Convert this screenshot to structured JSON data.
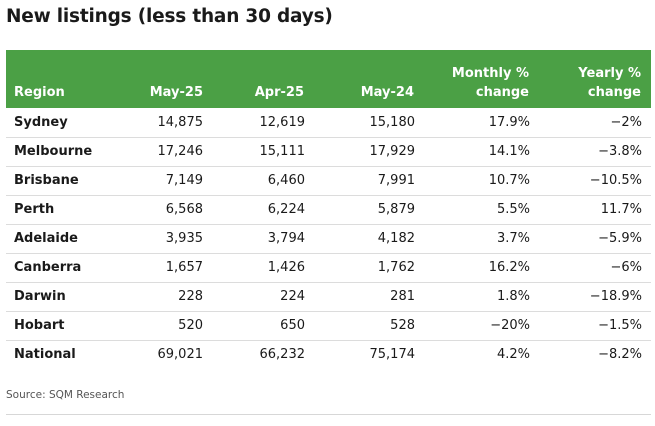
{
  "title": "New listings (less than 30 days)",
  "table": {
    "headers": {
      "region": "Region",
      "may25": "May-25",
      "apr25": "Apr-25",
      "may24": "May-24",
      "monthly_line1": "Monthly %",
      "monthly_line2": "change",
      "yearly_line1": "Yearly %",
      "yearly_line2": "change"
    },
    "header_color": "#4ba045",
    "rows": [
      {
        "region": "Sydney",
        "may25": "14,875",
        "apr25": "12,619",
        "may24": "15,180",
        "monthly": "17.9%",
        "yearly": "−2%"
      },
      {
        "region": "Melbourne",
        "may25": "17,246",
        "apr25": "15,111",
        "may24": "17,929",
        "monthly": "14.1%",
        "yearly": "−3.8%"
      },
      {
        "region": "Brisbane",
        "may25": "7,149",
        "apr25": "6,460",
        "may24": "7,991",
        "monthly": "10.7%",
        "yearly": "−10.5%"
      },
      {
        "region": "Perth",
        "may25": "6,568",
        "apr25": "6,224",
        "may24": "5,879",
        "monthly": "5.5%",
        "yearly": "11.7%"
      },
      {
        "region": "Adelaide",
        "may25": "3,935",
        "apr25": "3,794",
        "may24": "4,182",
        "monthly": "3.7%",
        "yearly": "−5.9%"
      },
      {
        "region": "Canberra",
        "may25": "1,657",
        "apr25": "1,426",
        "may24": "1,762",
        "monthly": "16.2%",
        "yearly": "−6%"
      },
      {
        "region": "Darwin",
        "may25": "228",
        "apr25": "224",
        "may24": "281",
        "monthly": "1.8%",
        "yearly": "−18.9%"
      },
      {
        "region": "Hobart",
        "may25": "520",
        "apr25": "650",
        "may24": "528",
        "monthly": "−20%",
        "yearly": "−1.5%"
      },
      {
        "region": "National",
        "may25": "69,021",
        "apr25": "66,232",
        "may24": "75,174",
        "monthly": "4.2%",
        "yearly": "−8.2%"
      }
    ]
  },
  "source": "Source: SQM Research"
}
